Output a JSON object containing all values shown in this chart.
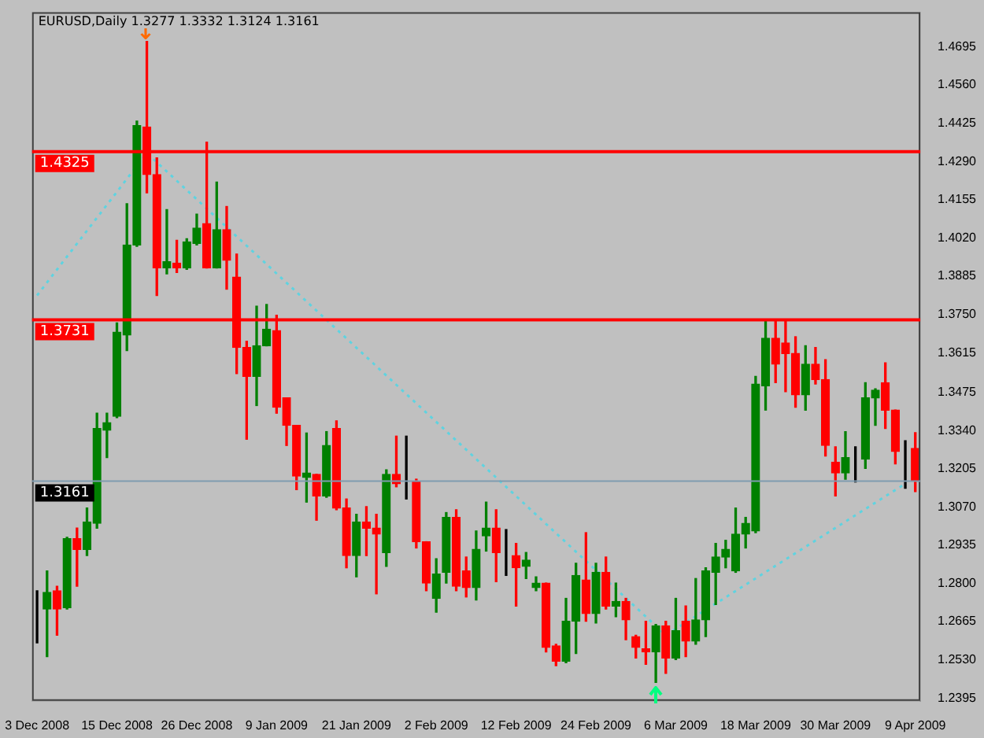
{
  "chart_data": {
    "type": "candlestick",
    "title": "EURUSD,Daily 1.3277 1.3332 1.3124 1.3161",
    "categories": [
      "3 Dec 2008",
      null,
      null,
      null,
      null,
      null,
      null,
      null,
      "15 Dec 2008",
      null,
      null,
      null,
      null,
      null,
      null,
      null,
      "26 Dec 2008",
      null,
      null,
      null,
      null,
      null,
      null,
      null,
      "9 Jan 2009",
      null,
      null,
      null,
      null,
      null,
      null,
      null,
      "21 Jan 2009",
      null,
      null,
      null,
      null,
      null,
      null,
      null,
      "2 Feb 2009",
      null,
      null,
      null,
      null,
      null,
      null,
      null,
      "12 Feb 2009",
      null,
      null,
      null,
      null,
      null,
      null,
      null,
      "24 Feb 2009",
      null,
      null,
      null,
      null,
      null,
      null,
      null,
      "6 Mar 2009",
      null,
      null,
      null,
      null,
      null,
      null,
      null,
      "18 Mar 2009",
      null,
      null,
      null,
      null,
      null,
      null,
      null,
      "30 Mar 2009",
      null,
      null,
      null,
      null,
      null,
      null,
      null,
      "9 Apr 2009"
    ],
    "ohlc": [
      [
        1.2709,
        1.2774,
        1.259,
        1.2709
      ],
      [
        1.2709,
        1.2844,
        1.2541,
        1.2768
      ],
      [
        1.2774,
        1.279,
        1.2617,
        1.2709
      ],
      [
        1.2714,
        1.2963,
        1.2709,
        1.2958
      ],
      [
        1.2958,
        1.2995,
        1.279,
        1.292
      ],
      [
        1.292,
        1.3066,
        1.2898,
        1.3017
      ],
      [
        1.3012,
        1.3401,
        1.2995,
        1.3347
      ],
      [
        1.3341,
        1.3401,
        1.3244,
        1.3368
      ],
      [
        1.339,
        1.372,
        1.3385,
        1.3687
      ],
      [
        1.3677,
        1.4141,
        1.3622,
        1.3995
      ],
      [
        1.3995,
        1.4433,
        1.399,
        1.4417
      ],
      [
        1.4412,
        1.4714,
        1.4179,
        1.4244
      ],
      [
        1.4244,
        1.4303,
        1.3817,
        1.3914
      ],
      [
        1.3914,
        1.412,
        1.3893,
        1.3936
      ],
      [
        1.3931,
        1.4012,
        1.3898,
        1.3914
      ],
      [
        1.3914,
        1.4017,
        1.3909,
        1.4006
      ],
      [
        1.4001,
        1.4104,
        1.3995,
        1.4055
      ],
      [
        1.4071,
        1.4358,
        1.3914,
        1.3914
      ],
      [
        1.3914,
        1.4217,
        1.3914,
        1.4049
      ],
      [
        1.4049,
        1.4131,
        1.3839,
        1.3941
      ],
      [
        1.3882,
        1.3963,
        1.3541,
        1.3633
      ],
      [
        1.3633,
        1.3655,
        1.3309,
        1.3531
      ],
      [
        1.3531,
        1.3779,
        1.3428,
        1.3639
      ],
      [
        1.3639,
        1.3785,
        1.3639,
        1.3698
      ],
      [
        1.3693,
        1.3747,
        1.3401,
        1.3422
      ],
      [
        1.3455,
        1.3455,
        1.3287,
        1.3358
      ],
      [
        1.3358,
        1.3358,
        1.3131,
        1.3179
      ],
      [
        1.3174,
        1.3331,
        1.3087,
        1.319
      ],
      [
        1.3185,
        1.3185,
        1.3023,
        1.3109
      ],
      [
        1.3109,
        1.3336,
        1.3104,
        1.3287
      ],
      [
        1.3347,
        1.3374,
        1.306,
        1.3066
      ],
      [
        1.3066,
        1.3098,
        1.2855,
        1.2898
      ],
      [
        1.2898,
        1.3044,
        1.2823,
        1.3017
      ],
      [
        1.3017,
        1.3071,
        1.2898,
        1.2995
      ],
      [
        1.2995,
        1.3044,
        1.2763,
        1.2974
      ],
      [
        1.2909,
        1.3201,
        1.286,
        1.3185
      ],
      [
        1.3185,
        1.332,
        1.3141,
        1.3152
      ],
      [
        1.3158,
        1.332,
        1.3098,
        1.3158
      ],
      [
        1.3158,
        1.3168,
        1.2925,
        1.2947
      ],
      [
        1.2947,
        1.2947,
        1.2774,
        1.2801
      ],
      [
        1.2747,
        1.2887,
        1.2698,
        1.2833
      ],
      [
        1.2839,
        1.305,
        1.2801,
        1.3033
      ],
      [
        1.3033,
        1.306,
        1.2774,
        1.279
      ],
      [
        1.2844,
        1.2893,
        1.2752,
        1.2785
      ],
      [
        1.2785,
        1.2985,
        1.2741,
        1.292
      ],
      [
        1.2968,
        1.3087,
        1.2914,
        1.2995
      ],
      [
        1.2995,
        1.306,
        1.2806,
        1.2909
      ],
      [
        1.2904,
        1.299,
        1.2828,
        1.2904
      ],
      [
        1.2898,
        1.2941,
        1.272,
        1.2855
      ],
      [
        1.286,
        1.2909,
        1.2817,
        1.2882
      ],
      [
        1.2785,
        1.2823,
        1.2774,
        1.2801
      ],
      [
        1.2801,
        1.2801,
        1.2558,
        1.2574
      ],
      [
        1.2579,
        1.2585,
        1.2509,
        1.2525
      ],
      [
        1.2525,
        1.2747,
        1.252,
        1.2666
      ],
      [
        1.2666,
        1.2871,
        1.2552,
        1.2828
      ],
      [
        1.2812,
        1.2979,
        1.2666,
        1.2693
      ],
      [
        1.2693,
        1.2871,
        1.266,
        1.2839
      ],
      [
        1.2839,
        1.2893,
        1.2709,
        1.272
      ],
      [
        1.272,
        1.2801,
        1.2682,
        1.2736
      ],
      [
        1.2736,
        1.2747,
        1.2601,
        1.2671
      ],
      [
        1.2612,
        1.2617,
        1.2536,
        1.2574
      ],
      [
        1.2569,
        1.2666,
        1.2514,
        1.2558
      ],
      [
        1.2558,
        1.2655,
        1.245,
        1.265
      ],
      [
        1.265,
        1.2666,
        1.2482,
        1.2536
      ],
      [
        1.2536,
        1.2747,
        1.2531,
        1.2633
      ],
      [
        1.2666,
        1.272,
        1.2541,
        1.2596
      ],
      [
        1.2596,
        1.2817,
        1.2585,
        1.2671
      ],
      [
        1.2671,
        1.2855,
        1.2612,
        1.2844
      ],
      [
        1.2839,
        1.2941,
        1.2725,
        1.2893
      ],
      [
        1.2893,
        1.2952,
        1.2855,
        1.292
      ],
      [
        1.2844,
        1.3066,
        1.2839,
        1.2974
      ],
      [
        1.2974,
        1.3033,
        1.2925,
        1.3012
      ],
      [
        1.2985,
        1.3531,
        1.2979,
        1.3504
      ],
      [
        1.3498,
        1.3731,
        1.3412,
        1.3666
      ],
      [
        1.3666,
        1.3725,
        1.3509,
        1.3574
      ],
      [
        1.3649,
        1.3725,
        1.3477,
        1.3612
      ],
      [
        1.3612,
        1.3671,
        1.3422,
        1.3466
      ],
      [
        1.3466,
        1.3639,
        1.3412,
        1.3574
      ],
      [
        1.3574,
        1.3633,
        1.3504,
        1.352
      ],
      [
        1.352,
        1.359,
        1.325,
        1.3287
      ],
      [
        1.3228,
        1.3282,
        1.3109,
        1.319
      ],
      [
        1.319,
        1.3336,
        1.3168,
        1.3244
      ],
      [
        1.3244,
        1.3282,
        1.3158,
        1.3244
      ],
      [
        1.3239,
        1.3509,
        1.3206,
        1.3455
      ],
      [
        1.3455,
        1.3487,
        1.3358,
        1.3482
      ],
      [
        1.3509,
        1.3579,
        1.3347,
        1.3412
      ],
      [
        1.3412,
        1.3412,
        1.3222,
        1.3266
      ],
      [
        1.3266,
        1.3304,
        1.3136,
        1.3266
      ],
      [
        1.3277,
        1.3332,
        1.3124,
        1.3161
      ]
    ],
    "colors": [
      "#000000",
      "#008000",
      "#ff0000",
      "#008000",
      "#ff0000",
      "#008000",
      "#008000",
      "#008000",
      "#008000",
      "#008000",
      "#008000",
      "#ff0000",
      "#ff0000",
      "#008000",
      "#ff0000",
      "#008000",
      "#008000",
      "#ff0000",
      "#008000",
      "#ff0000",
      "#ff0000",
      "#ff0000",
      "#008000",
      "#008000",
      "#ff0000",
      "#ff0000",
      "#ff0000",
      "#008000",
      "#ff0000",
      "#008000",
      "#ff0000",
      "#ff0000",
      "#008000",
      "#ff0000",
      "#ff0000",
      "#008000",
      "#ff0000",
      "#000000",
      "#ff0000",
      "#ff0000",
      "#008000",
      "#008000",
      "#ff0000",
      "#ff0000",
      "#008000",
      "#008000",
      "#ff0000",
      "#000000",
      "#ff0000",
      "#008000",
      "#008000",
      "#ff0000",
      "#ff0000",
      "#008000",
      "#008000",
      "#ff0000",
      "#008000",
      "#ff0000",
      "#008000",
      "#ff0000",
      "#ff0000",
      "#ff0000",
      "#008000",
      "#ff0000",
      "#008000",
      "#ff0000",
      "#008000",
      "#008000",
      "#008000",
      "#008000",
      "#008000",
      "#008000",
      "#008000",
      "#008000",
      "#ff0000",
      "#ff0000",
      "#ff0000",
      "#008000",
      "#ff0000",
      "#ff0000",
      "#ff0000",
      "#008000",
      "#000000",
      "#008000",
      "#008000",
      "#ff0000",
      "#ff0000",
      "#000000",
      "#ff0000"
    ],
    "series": [
      {
        "type": "line",
        "color": "#5fd3e0",
        "values": [
          1.3817,
          null,
          null,
          null,
          null,
          null,
          null,
          null,
          null,
          null,
          null,
          1.432,
          null,
          null,
          null,
          null,
          null,
          null,
          null,
          null,
          null,
          null,
          null,
          null,
          null,
          null,
          null,
          null,
          null,
          null,
          null,
          null,
          null,
          null,
          null,
          null,
          null,
          null,
          null,
          null,
          null,
          null,
          null,
          null,
          null,
          null,
          null,
          null,
          null,
          null,
          null,
          null,
          null,
          null,
          null,
          null,
          null,
          null,
          null,
          null,
          null,
          null,
          null,
          1.2617,
          null,
          null,
          null,
          null,
          null,
          null,
          null,
          null,
          null,
          null,
          null,
          null,
          null,
          null,
          null,
          null,
          null,
          null,
          null,
          null,
          null,
          null,
          null,
          1.3152,
          null
        ]
      }
    ],
    "line_style": "dotted",
    "marker": "none",
    "ylim": [
      1.2385,
      1.4817
    ],
    "yticks": [
      1.2395,
      {
        "value": 1.253,
        "label": "1.2530"
      },
      1.2665,
      {
        "value": 1.28,
        "label": "1.2800"
      },
      1.2935,
      {
        "value": 1.307,
        "label": "1.3070"
      },
      1.3205,
      {
        "value": 1.334,
        "label": "1.3340"
      },
      1.3475,
      1.3615,
      {
        "value": 1.375,
        "label": "1.3750"
      },
      1.3885,
      {
        "value": 1.402,
        "label": "1.4020"
      },
      1.4155,
      {
        "value": 1.429,
        "label": "1.4290"
      },
      1.4425,
      {
        "value": 1.456,
        "label": "1.4560"
      },
      1.4695
    ],
    "ref_lines": [
      {
        "axis": "y",
        "value": 1.4325,
        "label": "1.4325",
        "color": "#ff0000"
      },
      {
        "axis": "y",
        "value": 1.3731,
        "label": "1.3731",
        "color": "#ff0000"
      },
      {
        "axis": "y",
        "value": 1.3161,
        "label": "1.3161",
        "color": "#7f9bb0"
      }
    ],
    "grid": false,
    "legend": false
  }
}
